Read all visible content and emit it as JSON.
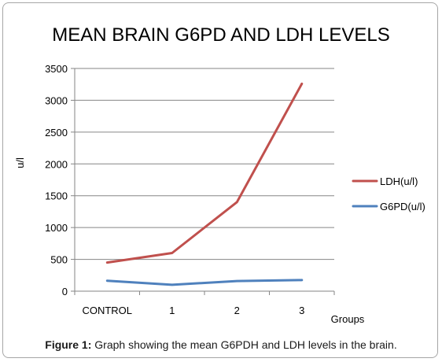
{
  "chart_data": {
    "type": "line",
    "title": "MEAN BRAIN G6PD AND LDH LEVELS",
    "xlabel": "Groups",
    "ylabel": "u/l",
    "categories": [
      "CONTROL",
      "1",
      "2",
      "3"
    ],
    "ylim": [
      0,
      3500
    ],
    "yticks": [
      "0",
      "500",
      "1000",
      "1500",
      "2000",
      "2500",
      "3000",
      "3500"
    ],
    "grid": true,
    "legend_position": "right",
    "series": [
      {
        "name": "LDH(u/l)",
        "color": "#c0504d",
        "values": [
          450,
          600,
          1400,
          3260
        ]
      },
      {
        "name": "G6PD(u/l)",
        "color": "#4f81bd",
        "values": [
          165,
          100,
          160,
          175
        ]
      }
    ]
  },
  "caption": {
    "label": "Figure 1:",
    "text": "Graph showing the mean G6PDH and LDH levels in the brain."
  }
}
